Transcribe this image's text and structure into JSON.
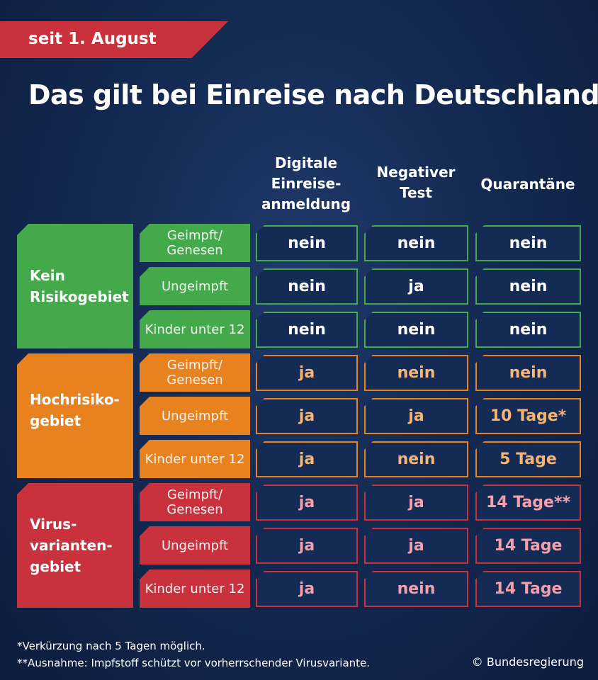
{
  "banner": "seit 1. August",
  "title": "Das gilt bei Einreise nach Deutschland",
  "columns": [
    "Digitale\nEinreise-\nanmeldung",
    "Negativer\nTest",
    "Quarantäne"
  ],
  "colors": {
    "green": "#44a94a",
    "orange": "#e8821f",
    "red": "#c9313c",
    "text_green": "#ffffff",
    "text_orange": "#f7b574",
    "text_red": "#f3a0ad",
    "cell_bg": "#142b55"
  },
  "groups": [
    {
      "label": "Kein\nRisikogebiet",
      "color": "green",
      "rows": [
        {
          "label": "Geimpft/\nGenesen",
          "values": [
            "nein",
            "nein",
            "nein"
          ]
        },
        {
          "label": "Ungeimpft",
          "values": [
            "nein",
            "ja",
            "nein"
          ]
        },
        {
          "label": "Kinder unter 12",
          "values": [
            "nein",
            "nein",
            "nein"
          ]
        }
      ]
    },
    {
      "label": "Hochrisiko-\ngebiet",
      "color": "orange",
      "rows": [
        {
          "label": "Geimpft/\nGenesen",
          "values": [
            "ja",
            "nein",
            "nein"
          ]
        },
        {
          "label": "Ungeimpft",
          "values": [
            "ja",
            "ja",
            "10 Tage*"
          ]
        },
        {
          "label": "Kinder unter 12",
          "values": [
            "ja",
            "nein",
            "5 Tage"
          ]
        }
      ]
    },
    {
      "label": "Virus-\nvarianten-\ngebiet",
      "color": "red",
      "rows": [
        {
          "label": "Geimpft/\nGenesen",
          "values": [
            "ja",
            "ja",
            "14 Tage**"
          ]
        },
        {
          "label": "Ungeimpft",
          "values": [
            "ja",
            "ja",
            "14 Tage"
          ]
        },
        {
          "label": "Kinder unter 12",
          "values": [
            "ja",
            "nein",
            "14 Tage"
          ]
        }
      ]
    }
  ],
  "footnotes": [
    "*Verkürzung nach 5 Tagen möglich.",
    "**Ausnahme: Impfstoff schützt vor vorherrschender Virusvariante."
  ],
  "credit": "© Bundesregierung"
}
